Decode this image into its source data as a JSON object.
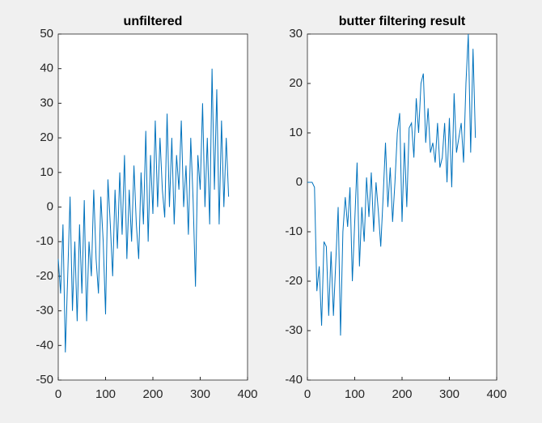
{
  "chart_data": [
    {
      "type": "line",
      "title": "unfiltered",
      "color": "#0072bd",
      "x": [
        0,
        5,
        10,
        15,
        20,
        25,
        30,
        35,
        40,
        45,
        50,
        55,
        60,
        65,
        70,
        75,
        80,
        85,
        90,
        95,
        100,
        105,
        110,
        115,
        120,
        125,
        130,
        135,
        140,
        145,
        150,
        155,
        160,
        165,
        170,
        175,
        180,
        185,
        190,
        195,
        200,
        205,
        210,
        215,
        220,
        225,
        230,
        235,
        240,
        245,
        250,
        255,
        260,
        265,
        270,
        275,
        280,
        285,
        290,
        295,
        300,
        305,
        310,
        315,
        320,
        325,
        330,
        335,
        340,
        345,
        350,
        355,
        360
      ],
      "values": [
        -15,
        -25,
        -5,
        -42,
        -20,
        3,
        -30,
        -10,
        -33,
        -5,
        -25,
        2,
        -33,
        -10,
        -20,
        5,
        -15,
        -25,
        3,
        -10,
        -31,
        8,
        -5,
        -20,
        5,
        -12,
        10,
        -8,
        15,
        -15,
        5,
        -10,
        12,
        -5,
        -15,
        10,
        -5,
        22,
        -10,
        15,
        -2,
        25,
        0,
        20,
        5,
        -3,
        27,
        0,
        20,
        -5,
        15,
        5,
        25,
        0,
        12,
        -8,
        20,
        2,
        -23,
        15,
        5,
        30,
        0,
        20,
        -5,
        40,
        5,
        34,
        -5,
        25,
        0,
        20,
        3
      ],
      "xlim": [
        0,
        400
      ],
      "xticks": [
        0,
        100,
        200,
        300,
        400
      ],
      "ylim": [
        -50,
        50
      ],
      "yticks": [
        -50,
        -40,
        -30,
        -20,
        -10,
        0,
        10,
        20,
        30,
        40,
        50
      ]
    },
    {
      "type": "line",
      "title": "butter filtering result",
      "color": "#0072bd",
      "x": [
        0,
        5,
        10,
        15,
        20,
        25,
        30,
        35,
        40,
        45,
        50,
        55,
        60,
        65,
        70,
        75,
        80,
        85,
        90,
        95,
        100,
        105,
        110,
        115,
        120,
        125,
        130,
        135,
        140,
        145,
        150,
        155,
        160,
        165,
        170,
        175,
        180,
        185,
        190,
        195,
        200,
        205,
        210,
        215,
        220,
        225,
        230,
        235,
        240,
        245,
        250,
        255,
        260,
        265,
        270,
        275,
        280,
        285,
        290,
        295,
        300,
        305,
        310,
        315,
        320,
        325,
        330,
        335,
        340,
        345,
        350,
        355
      ],
      "values": [
        0,
        0,
        0,
        -1,
        -22,
        -17,
        -29,
        -12,
        -13,
        -27,
        -14,
        -27,
        -16,
        -5,
        -31,
        -10,
        -3,
        -9,
        -1,
        -20,
        -8,
        4,
        -17,
        -5,
        -12,
        1,
        -7,
        2,
        -10,
        0,
        -6,
        -13,
        -3,
        8,
        -5,
        3,
        -8,
        0,
        10,
        14,
        -8,
        8,
        -5,
        11,
        12,
        5,
        17,
        10,
        20,
        22,
        8,
        15,
        6,
        8,
        4,
        12,
        3,
        5,
        12,
        0,
        13,
        -1,
        18,
        6,
        9,
        12,
        4,
        20,
        30,
        6,
        27,
        9
      ],
      "xlim": [
        0,
        400
      ],
      "xticks": [
        0,
        100,
        200,
        300,
        400
      ],
      "ylim": [
        -40,
        30
      ],
      "yticks": [
        -40,
        -30,
        -20,
        -10,
        0,
        10,
        20,
        30
      ]
    }
  ]
}
